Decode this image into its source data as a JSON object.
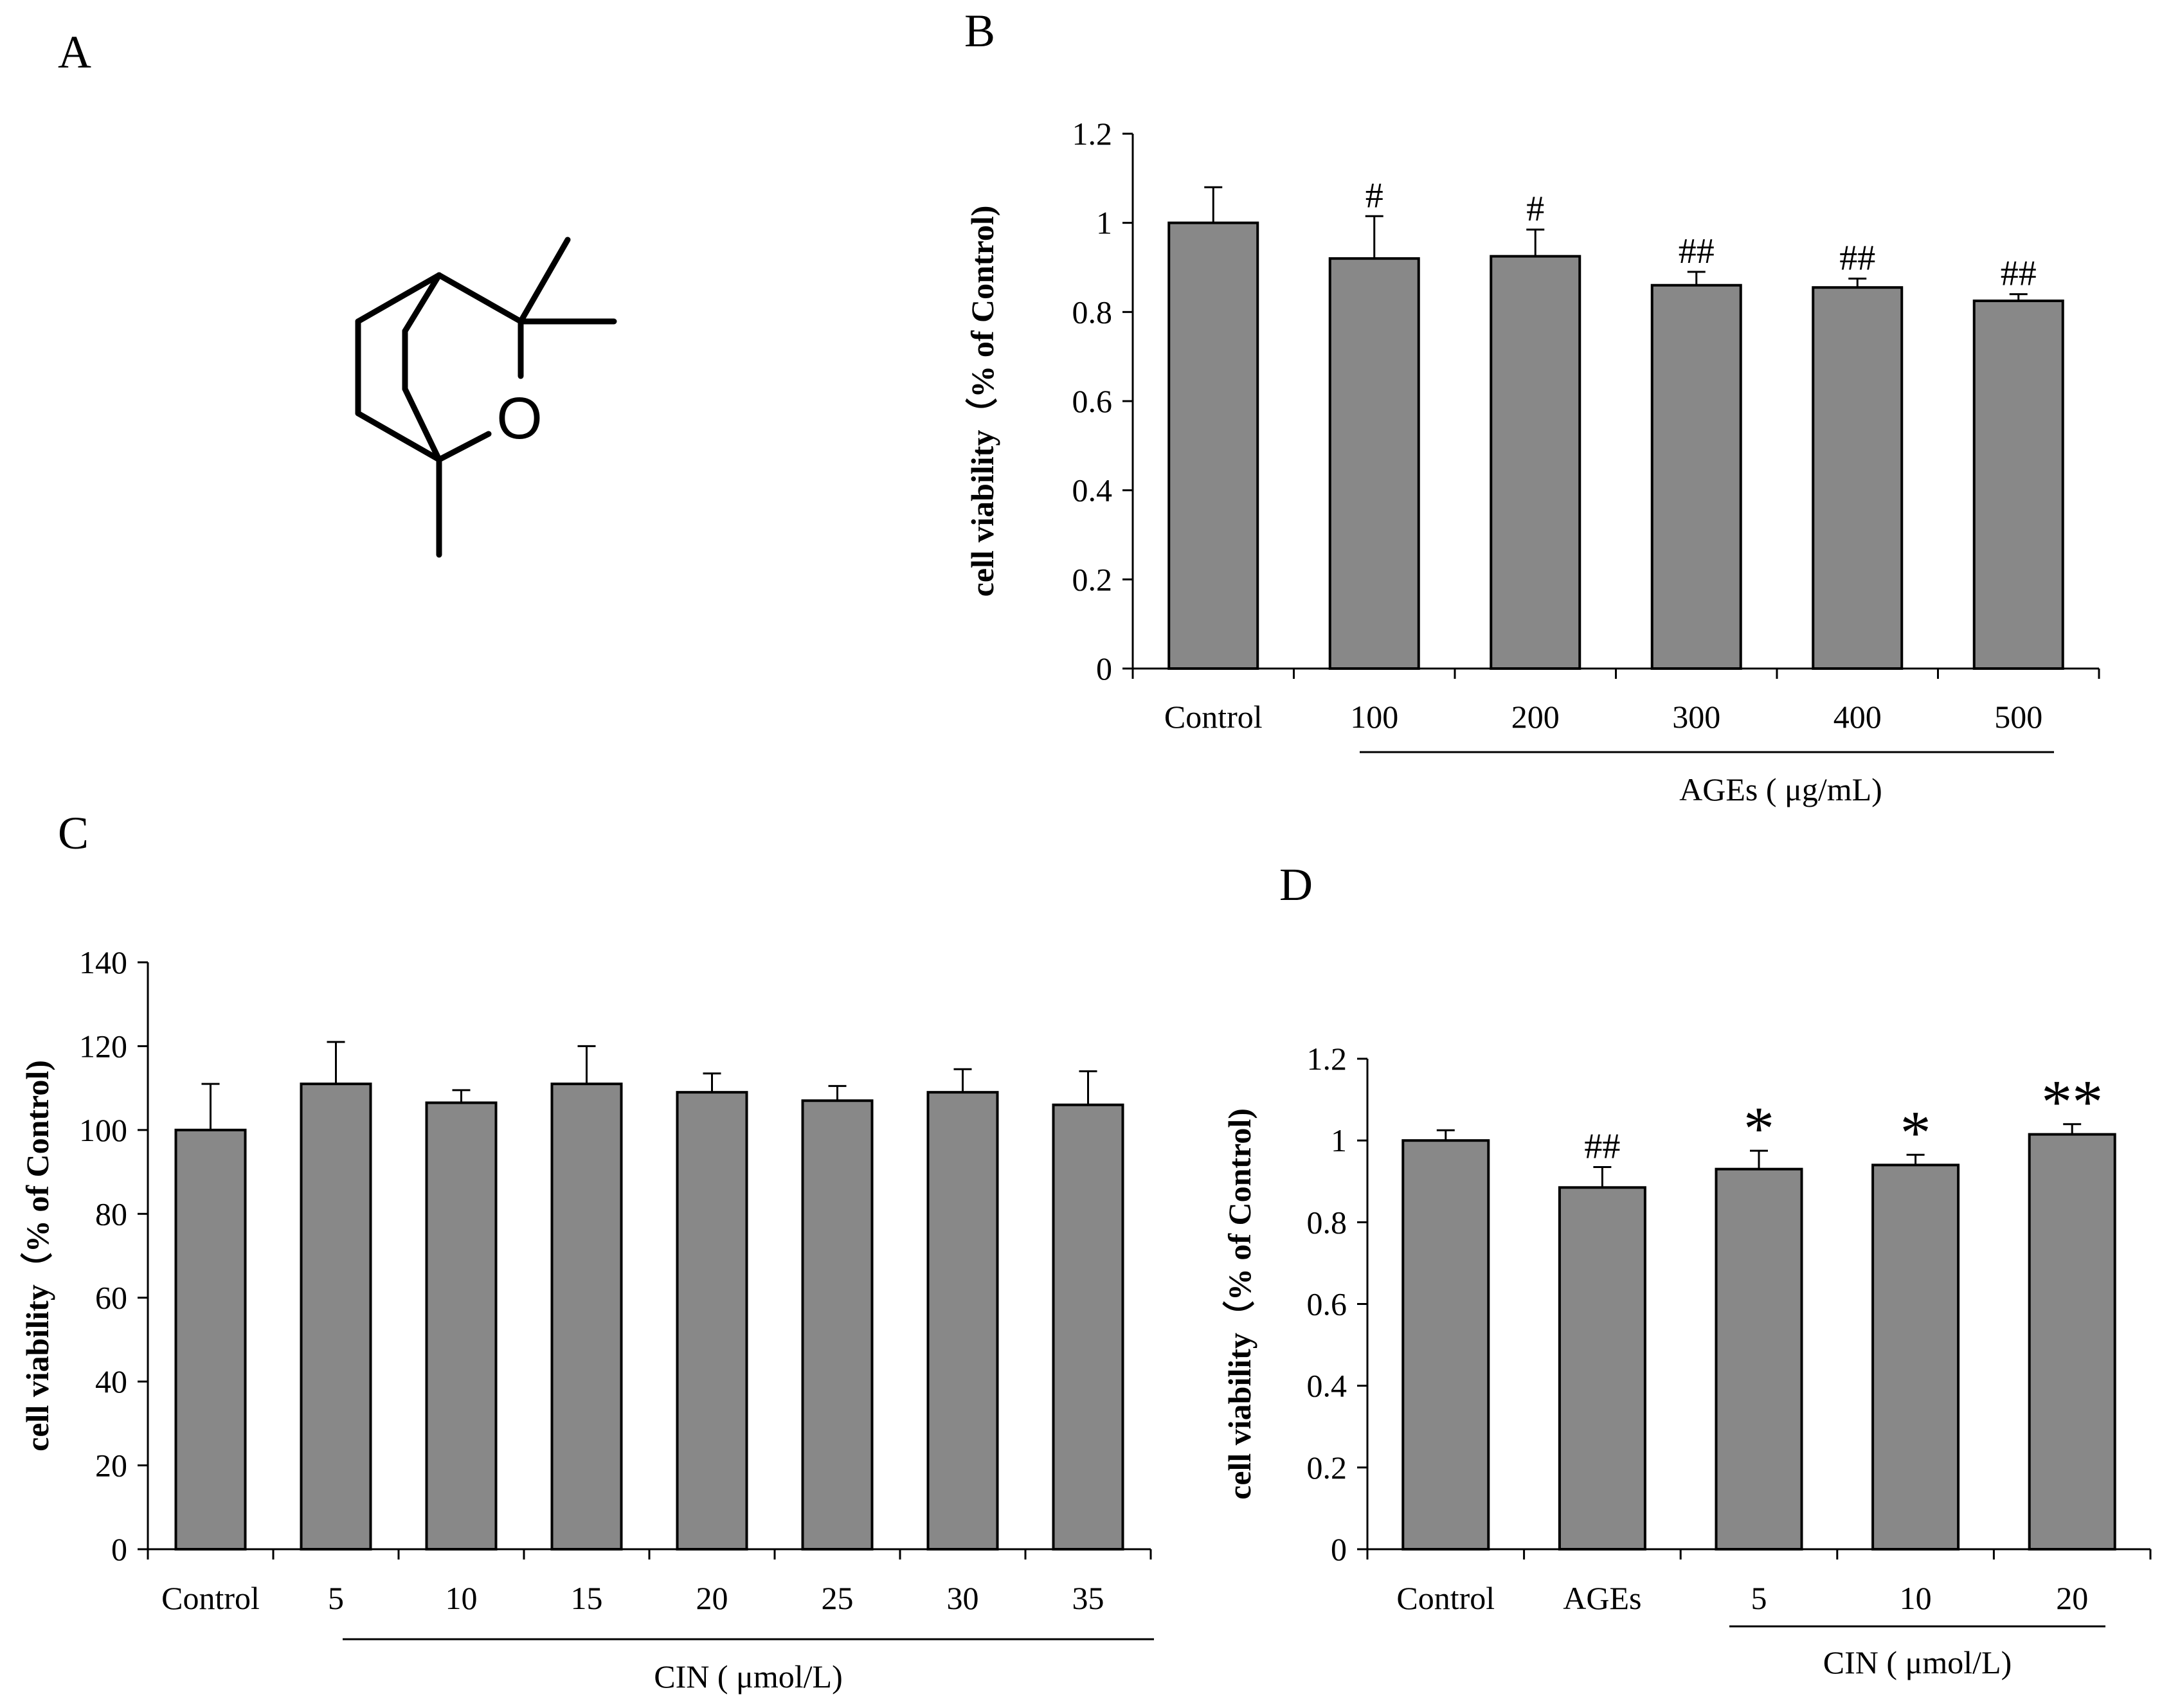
{
  "panel_labels": {
    "a": "A",
    "b": "B",
    "c": "C",
    "d": "D"
  },
  "molecule": {
    "atom_label": "O"
  },
  "colors": {
    "bar_fill": "#888888",
    "axis": "#000000"
  },
  "chart_data": [
    {
      "id": "B",
      "type": "bar",
      "title": "",
      "ylabel": "cell viability（% of Control)",
      "xlabel": "",
      "group_label": "AGEs ( μg/mL)",
      "group_range": [
        1,
        5
      ],
      "categories": [
        "Control",
        "100",
        "200",
        "300",
        "400",
        "500"
      ],
      "values": [
        1.0,
        0.92,
        0.925,
        0.86,
        0.855,
        0.825
      ],
      "errors": [
        0.08,
        0.095,
        0.06,
        0.03,
        0.02,
        0.015
      ],
      "significance": [
        "",
        "#",
        "#",
        "##",
        "##",
        "##"
      ],
      "ylim": [
        0,
        1.2
      ],
      "yticks": [
        0,
        0.2,
        0.4,
        0.6,
        0.8,
        1.0,
        1.2
      ],
      "ytick_labels": [
        "0",
        "0.2",
        "0.4",
        "0.6",
        "0.8",
        "1",
        "1.2"
      ]
    },
    {
      "id": "C",
      "type": "bar",
      "title": "",
      "ylabel": "cell viability（% of Control)",
      "xlabel": "",
      "group_label": "CIN ( μmol/L)",
      "group_range": [
        1,
        7
      ],
      "categories": [
        "Control",
        "5",
        "10",
        "15",
        "20",
        "25",
        "30",
        "35"
      ],
      "values": [
        100,
        111,
        106.5,
        111,
        109,
        107,
        109,
        106
      ],
      "errors": [
        11,
        10,
        3,
        9,
        4.5,
        3.5,
        5.5,
        8
      ],
      "significance": [
        "",
        "",
        "",
        "",
        "",
        "",
        "",
        ""
      ],
      "ylim": [
        0,
        140
      ],
      "yticks": [
        0,
        20,
        40,
        60,
        80,
        100,
        120,
        140
      ],
      "ytick_labels": [
        "0",
        "20",
        "40",
        "60",
        "80",
        "100",
        "120",
        "140"
      ]
    },
    {
      "id": "D",
      "type": "bar",
      "title": "",
      "ylabel": "cell viability（% of Control)",
      "xlabel": "",
      "group_label": "CIN ( μmol/L)",
      "group_range": [
        2,
        4
      ],
      "categories": [
        "Control",
        "AGEs",
        "5",
        "10",
        "20"
      ],
      "values": [
        1.0,
        0.885,
        0.93,
        0.94,
        1.015
      ],
      "errors": [
        0.025,
        0.05,
        0.045,
        0.025,
        0.025
      ],
      "significance": [
        "",
        "##",
        "*",
        "*",
        "**"
      ],
      "ylim": [
        0,
        1.2
      ],
      "yticks": [
        0,
        0.2,
        0.4,
        0.6,
        0.8,
        1.0,
        1.2
      ],
      "ytick_labels": [
        "0",
        "0.2",
        "0.4",
        "0.6",
        "0.8",
        "1",
        "1.2"
      ]
    }
  ]
}
